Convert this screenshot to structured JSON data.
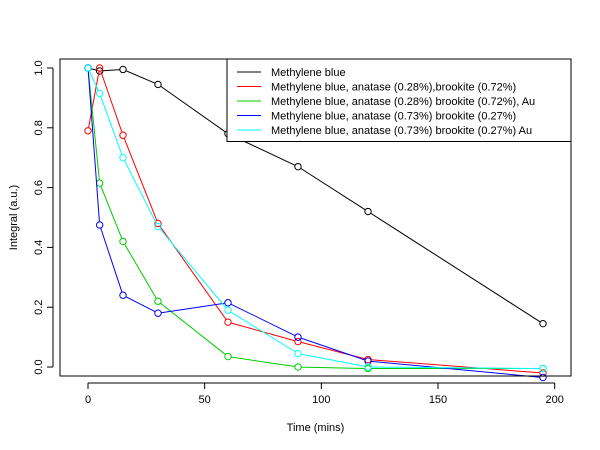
{
  "chart_data": {
    "type": "line",
    "xlabel": "Time (mins)",
    "ylabel": "Integral (a.u.)",
    "xlim": [
      -12,
      207
    ],
    "ylim": [
      -0.03,
      1.03
    ],
    "x_ticks": [
      0,
      50,
      100,
      150,
      200
    ],
    "y_ticks": [
      0.0,
      0.2,
      0.4,
      0.6,
      0.8,
      1.0
    ],
    "x_tick_labels": [
      "0",
      "50",
      "100",
      "150",
      "200"
    ],
    "y_tick_labels": [
      "0.0",
      "0.2",
      "0.4",
      "0.6",
      "0.8",
      "1.0"
    ],
    "grid": false,
    "legend_position": "top-right",
    "series": [
      {
        "name": "Methylene blue",
        "color": "#000000",
        "x": [
          0,
          5,
          15,
          30,
          60,
          90,
          120,
          195
        ],
        "y": [
          1.0,
          0.99,
          0.995,
          0.945,
          0.78,
          0.67,
          0.52,
          0.145
        ]
      },
      {
        "name": "Methylene blue, anatase (0.28%),brookite (0.72%)",
        "color": "#ff0000",
        "x": [
          0,
          5,
          15,
          30,
          60,
          90,
          120,
          195
        ],
        "y": [
          0.79,
          1.0,
          0.775,
          0.48,
          0.15,
          0.085,
          0.025,
          -0.02
        ]
      },
      {
        "name": "Methylene blue, anatase (0.28%) brookite (0.72%), Au",
        "color": "#00cc00",
        "x": [
          0,
          5,
          15,
          30,
          60,
          90,
          120,
          195
        ],
        "y": [
          1.0,
          0.615,
          0.42,
          0.22,
          0.035,
          0.0,
          -0.005,
          -0.005
        ]
      },
      {
        "name": "Methylene blue, anatase (0.73%) brookite (0.27%)",
        "color": "#0000ff",
        "x": [
          0,
          5,
          15,
          30,
          60,
          90,
          120,
          195
        ],
        "y": [
          1.0,
          0.475,
          0.24,
          0.18,
          0.215,
          0.1,
          0.02,
          -0.035
        ]
      },
      {
        "name": "Methylene blue, anatase (0.73%) brookite (0.27%) Au",
        "color": "#00ffff",
        "x": [
          0,
          5,
          15,
          30,
          60,
          90,
          120,
          195
        ],
        "y": [
          1.0,
          0.915,
          0.7,
          0.47,
          0.19,
          0.045,
          0.0,
          -0.005
        ]
      }
    ]
  }
}
